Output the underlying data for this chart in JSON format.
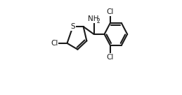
{
  "bg_color": "#ffffff",
  "line_color": "#1a1a1a",
  "line_width": 1.5,
  "font_size_label": 7.5,
  "font_size_sub": 5.5,
  "figsize": [
    2.59,
    1.36
  ],
  "dpi": 100,
  "xlim": [
    0.0,
    1.0
  ],
  "ylim": [
    0.0,
    1.0
  ]
}
